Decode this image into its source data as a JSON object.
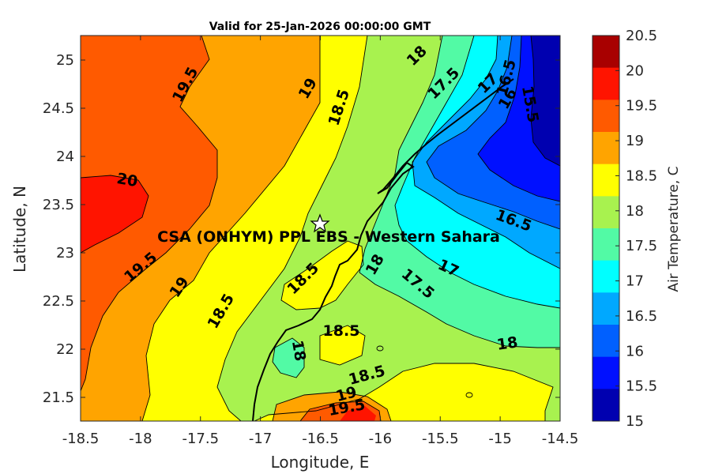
{
  "title": "Valid for 25-Jan-2026 00:00:00 GMT",
  "site_label": "CSA (ONHYM) PPL EBS - Western Sahara",
  "x_axis": {
    "label": "Longitude, E",
    "ticks": [
      "-18.5",
      "-18",
      "-17.5",
      "-17",
      "-16.5",
      "-16",
      "-15.5",
      "-15",
      "-14.5"
    ]
  },
  "y_axis": {
    "label": "Latitude, N",
    "ticks": [
      "25",
      "24.5",
      "24",
      "23.5",
      "23",
      "22.5",
      "22",
      "21.5"
    ]
  },
  "colorbar": {
    "label": "Air Temperature, C",
    "ticks": [
      "20.5",
      "20",
      "19.5",
      "19",
      "18.5",
      "18",
      "17.5",
      "17",
      "16.5",
      "16",
      "15.5",
      "15"
    ],
    "colors": [
      "#a80000",
      "#ff1400",
      "#ff5a00",
      "#ffa400",
      "#ffff00",
      "#a8f24f",
      "#52faa5",
      "#00ffff",
      "#00a8ff",
      "#0060ff",
      "#0010ff",
      "#0000b0"
    ]
  },
  "contour_labels": {
    "l195_top": "19.5",
    "l19_top": "19",
    "l185_top": "18.5",
    "l18_top": "18",
    "l175_top": "17.5",
    "l17_top": "17",
    "l165_top": "16.5",
    "l16_top": "16",
    "l155_top": "15.5",
    "l20": "20",
    "l195_left": "19.5",
    "l19_left": "19",
    "l185_left": "18.5",
    "l185_mid": "18.5",
    "l18_mid": "18",
    "l175_mid": "17.5",
    "l17_mid": "17",
    "l165_right": "16.5",
    "l18_right": "18",
    "l185_bot": "18.5",
    "l18_bot": "18",
    "l185_b2": "18.5",
    "l19_bot": "19",
    "l195_bot": "19.5"
  },
  "chart_data": {
    "type": "heatmap",
    "title": "Valid for 25-Jan-2026 00:00:00 GMT",
    "xlabel": "Longitude, E",
    "ylabel": "Latitude, N",
    "xlim": [
      -18.5,
      -14.5
    ],
    "ylim": [
      21.25,
      25.25
    ],
    "colorbar_label": "Air Temperature, C",
    "color_range": [
      15,
      20.5
    ],
    "contour_levels": [
      15.5,
      16,
      16.5,
      17,
      17.5,
      18,
      18.5,
      19,
      19.5,
      20
    ],
    "site": {
      "name": "CSA (ONHYM) PPL EBS - Western Sahara",
      "lon": -16.5,
      "lat": 23.28
    },
    "summary": "Warmest air (about 20 C) over the ocean west of -18 E, cooling eastward to about 15 C inland near -14.5 E"
  }
}
